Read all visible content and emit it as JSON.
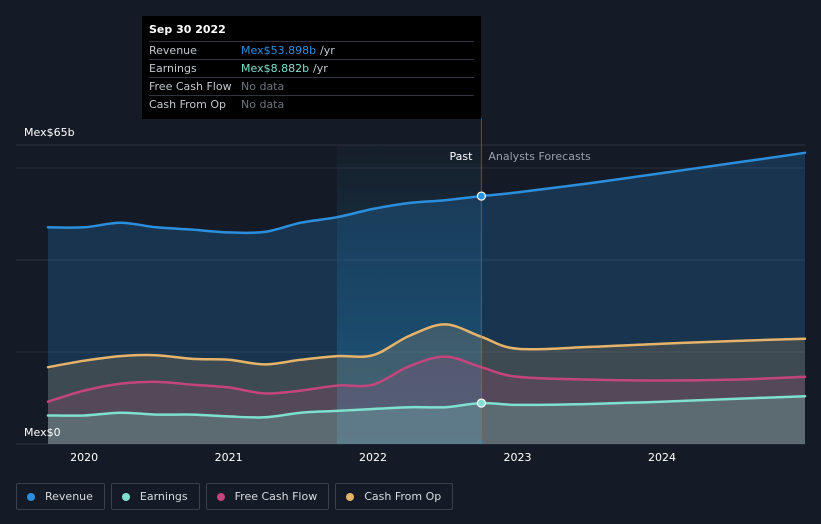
{
  "colors": {
    "revenue": "#2b8fdd",
    "earnings": "#7fe0cf",
    "free_cash_flow": "#c4457d",
    "cash_from_op": "#e5b46a",
    "grid": "#2a303b",
    "axis_text": "#ffffff",
    "past_highlight": "#1e6a8f",
    "divider": "#2b8fdd"
  },
  "tooltip": {
    "date": "Sep 30 2022",
    "rows": [
      {
        "label": "Revenue",
        "value": "Mex$53.898b",
        "unit": "/yr",
        "color": "#2b8fdd"
      },
      {
        "label": "Earnings",
        "value": "Mex$8.882b",
        "unit": "/yr",
        "color": "#7fe0cf"
      },
      {
        "label": "Free Cash Flow",
        "value": "No data",
        "unit": "",
        "color": "#6f7480"
      },
      {
        "label": "Cash From Op",
        "value": "No data",
        "unit": "",
        "color": "#6f7480"
      }
    ]
  },
  "legend": [
    {
      "label": "Revenue",
      "color": "#2b8fdd"
    },
    {
      "label": "Earnings",
      "color": "#7fe0cf"
    },
    {
      "label": "Free Cash Flow",
      "color": "#c4457d"
    },
    {
      "label": "Cash From Op",
      "color": "#e5b46a"
    }
  ],
  "chart_data": {
    "type": "area",
    "ylim": [
      0,
      65
    ],
    "xlim": [
      2019.75,
      2024.99
    ],
    "y_axis_labels": [
      {
        "label": "Mex$65b",
        "value": 65
      },
      {
        "label": "Mex$0",
        "value": 0
      }
    ],
    "gridlines": [
      0,
      20,
      40,
      60,
      65
    ],
    "x_ticks": [
      {
        "label": "2020",
        "value": 2020
      },
      {
        "label": "2021",
        "value": 2021
      },
      {
        "label": "2022",
        "value": 2022
      },
      {
        "label": "2023",
        "value": 2023
      },
      {
        "label": "2024",
        "value": 2024
      }
    ],
    "past_label": "Past",
    "forecast_label": "Analysts Forecasts",
    "divider_x": 2022.75,
    "highlight_start_x": 2021.75,
    "series": [
      {
        "name": "Revenue",
        "key": "revenue",
        "points": [
          [
            2019.75,
            47.1
          ],
          [
            2020.0,
            47.1
          ],
          [
            2020.25,
            48.1
          ],
          [
            2020.5,
            47.1
          ],
          [
            2020.75,
            46.6
          ],
          [
            2021.0,
            46.0
          ],
          [
            2021.25,
            46.1
          ],
          [
            2021.5,
            48.1
          ],
          [
            2021.75,
            49.3
          ],
          [
            2022.0,
            51.1
          ],
          [
            2022.25,
            52.4
          ],
          [
            2022.5,
            53.0
          ],
          [
            2022.75,
            53.9
          ],
          [
            2023.0,
            54.7
          ],
          [
            2023.5,
            56.7
          ],
          [
            2024.0,
            58.9
          ],
          [
            2024.5,
            61.1
          ],
          [
            2024.99,
            63.3
          ]
        ],
        "markers": [
          [
            2022.75,
            53.9
          ]
        ]
      },
      {
        "name": "Cash From Op",
        "key": "cash_from_op",
        "points": [
          [
            2019.75,
            16.7
          ],
          [
            2020.0,
            18.1
          ],
          [
            2020.25,
            19.1
          ],
          [
            2020.5,
            19.3
          ],
          [
            2020.75,
            18.5
          ],
          [
            2021.0,
            18.3
          ],
          [
            2021.25,
            17.3
          ],
          [
            2021.5,
            18.3
          ],
          [
            2021.75,
            19.1
          ],
          [
            2022.0,
            19.3
          ],
          [
            2022.25,
            23.5
          ],
          [
            2022.5,
            26.0
          ],
          [
            2022.75,
            23.3
          ],
          [
            2023.0,
            20.7
          ],
          [
            2023.5,
            21.1
          ],
          [
            2024.0,
            21.8
          ],
          [
            2024.5,
            22.4
          ],
          [
            2024.99,
            22.9
          ]
        ],
        "markers": []
      },
      {
        "name": "Free Cash Flow",
        "key": "free_cash_flow",
        "points": [
          [
            2019.75,
            9.2
          ],
          [
            2020.0,
            11.6
          ],
          [
            2020.25,
            13.1
          ],
          [
            2020.5,
            13.5
          ],
          [
            2020.75,
            12.9
          ],
          [
            2021.0,
            12.3
          ],
          [
            2021.25,
            11.0
          ],
          [
            2021.5,
            11.6
          ],
          [
            2021.75,
            12.7
          ],
          [
            2022.0,
            12.9
          ],
          [
            2022.25,
            16.9
          ],
          [
            2022.5,
            19.0
          ],
          [
            2022.75,
            16.7
          ],
          [
            2023.0,
            14.6
          ],
          [
            2023.5,
            14.0
          ],
          [
            2024.0,
            13.8
          ],
          [
            2024.5,
            14.0
          ],
          [
            2024.99,
            14.6
          ]
        ],
        "markers": []
      },
      {
        "name": "Earnings",
        "key": "earnings",
        "points": [
          [
            2019.75,
            6.2
          ],
          [
            2020.0,
            6.2
          ],
          [
            2020.25,
            6.8
          ],
          [
            2020.5,
            6.4
          ],
          [
            2020.75,
            6.4
          ],
          [
            2021.0,
            6.0
          ],
          [
            2021.25,
            5.8
          ],
          [
            2021.5,
            6.8
          ],
          [
            2021.75,
            7.2
          ],
          [
            2022.0,
            7.6
          ],
          [
            2022.25,
            8.0
          ],
          [
            2022.5,
            8.0
          ],
          [
            2022.75,
            8.9
          ],
          [
            2023.0,
            8.5
          ],
          [
            2023.5,
            8.7
          ],
          [
            2024.0,
            9.2
          ],
          [
            2024.5,
            9.8
          ],
          [
            2024.99,
            10.4
          ]
        ],
        "markers": [
          [
            2022.75,
            8.9
          ]
        ]
      }
    ]
  }
}
